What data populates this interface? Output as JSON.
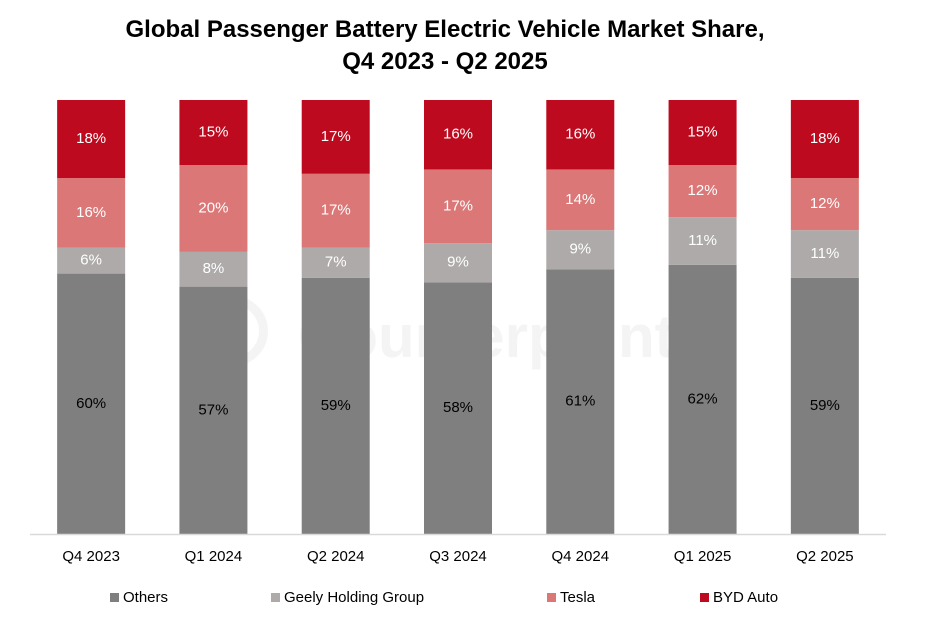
{
  "chart_data": {
    "type": "bar",
    "stacked": true,
    "title": "Global Passenger Battery Electric Vehicle Market Share,",
    "subtitle": "Q4 2023 - Q2 2025",
    "xlabel": "",
    "ylabel": "",
    "ylim": [
      0,
      100
    ],
    "grid": false,
    "legend_position": "bottom",
    "categories": [
      "Q4 2023",
      "Q1 2024",
      "Q2 2024",
      "Q3 2024",
      "Q4 2024",
      "Q1 2025",
      "Q2 2025"
    ],
    "series": [
      {
        "name": "Others",
        "color": "#7f7f7f",
        "label_color": "#000000",
        "values": [
          60,
          57,
          59,
          58,
          61,
          62,
          59
        ]
      },
      {
        "name": "Geely Holding Group",
        "color": "#aeaaaa",
        "label_color": "#ffffff",
        "values": [
          6,
          8,
          7,
          9,
          9,
          11,
          11
        ]
      },
      {
        "name": "Tesla",
        "color": "#db7777",
        "label_color": "#ffffff",
        "values": [
          16,
          20,
          17,
          17,
          14,
          12,
          12
        ]
      },
      {
        "name": "BYD Auto",
        "color": "#bd0a1e",
        "label_color": "#ffffff",
        "values": [
          18,
          15,
          17,
          16,
          16,
          15,
          18
        ]
      }
    ],
    "value_suffix": "%",
    "watermark": "Counterpoint"
  }
}
